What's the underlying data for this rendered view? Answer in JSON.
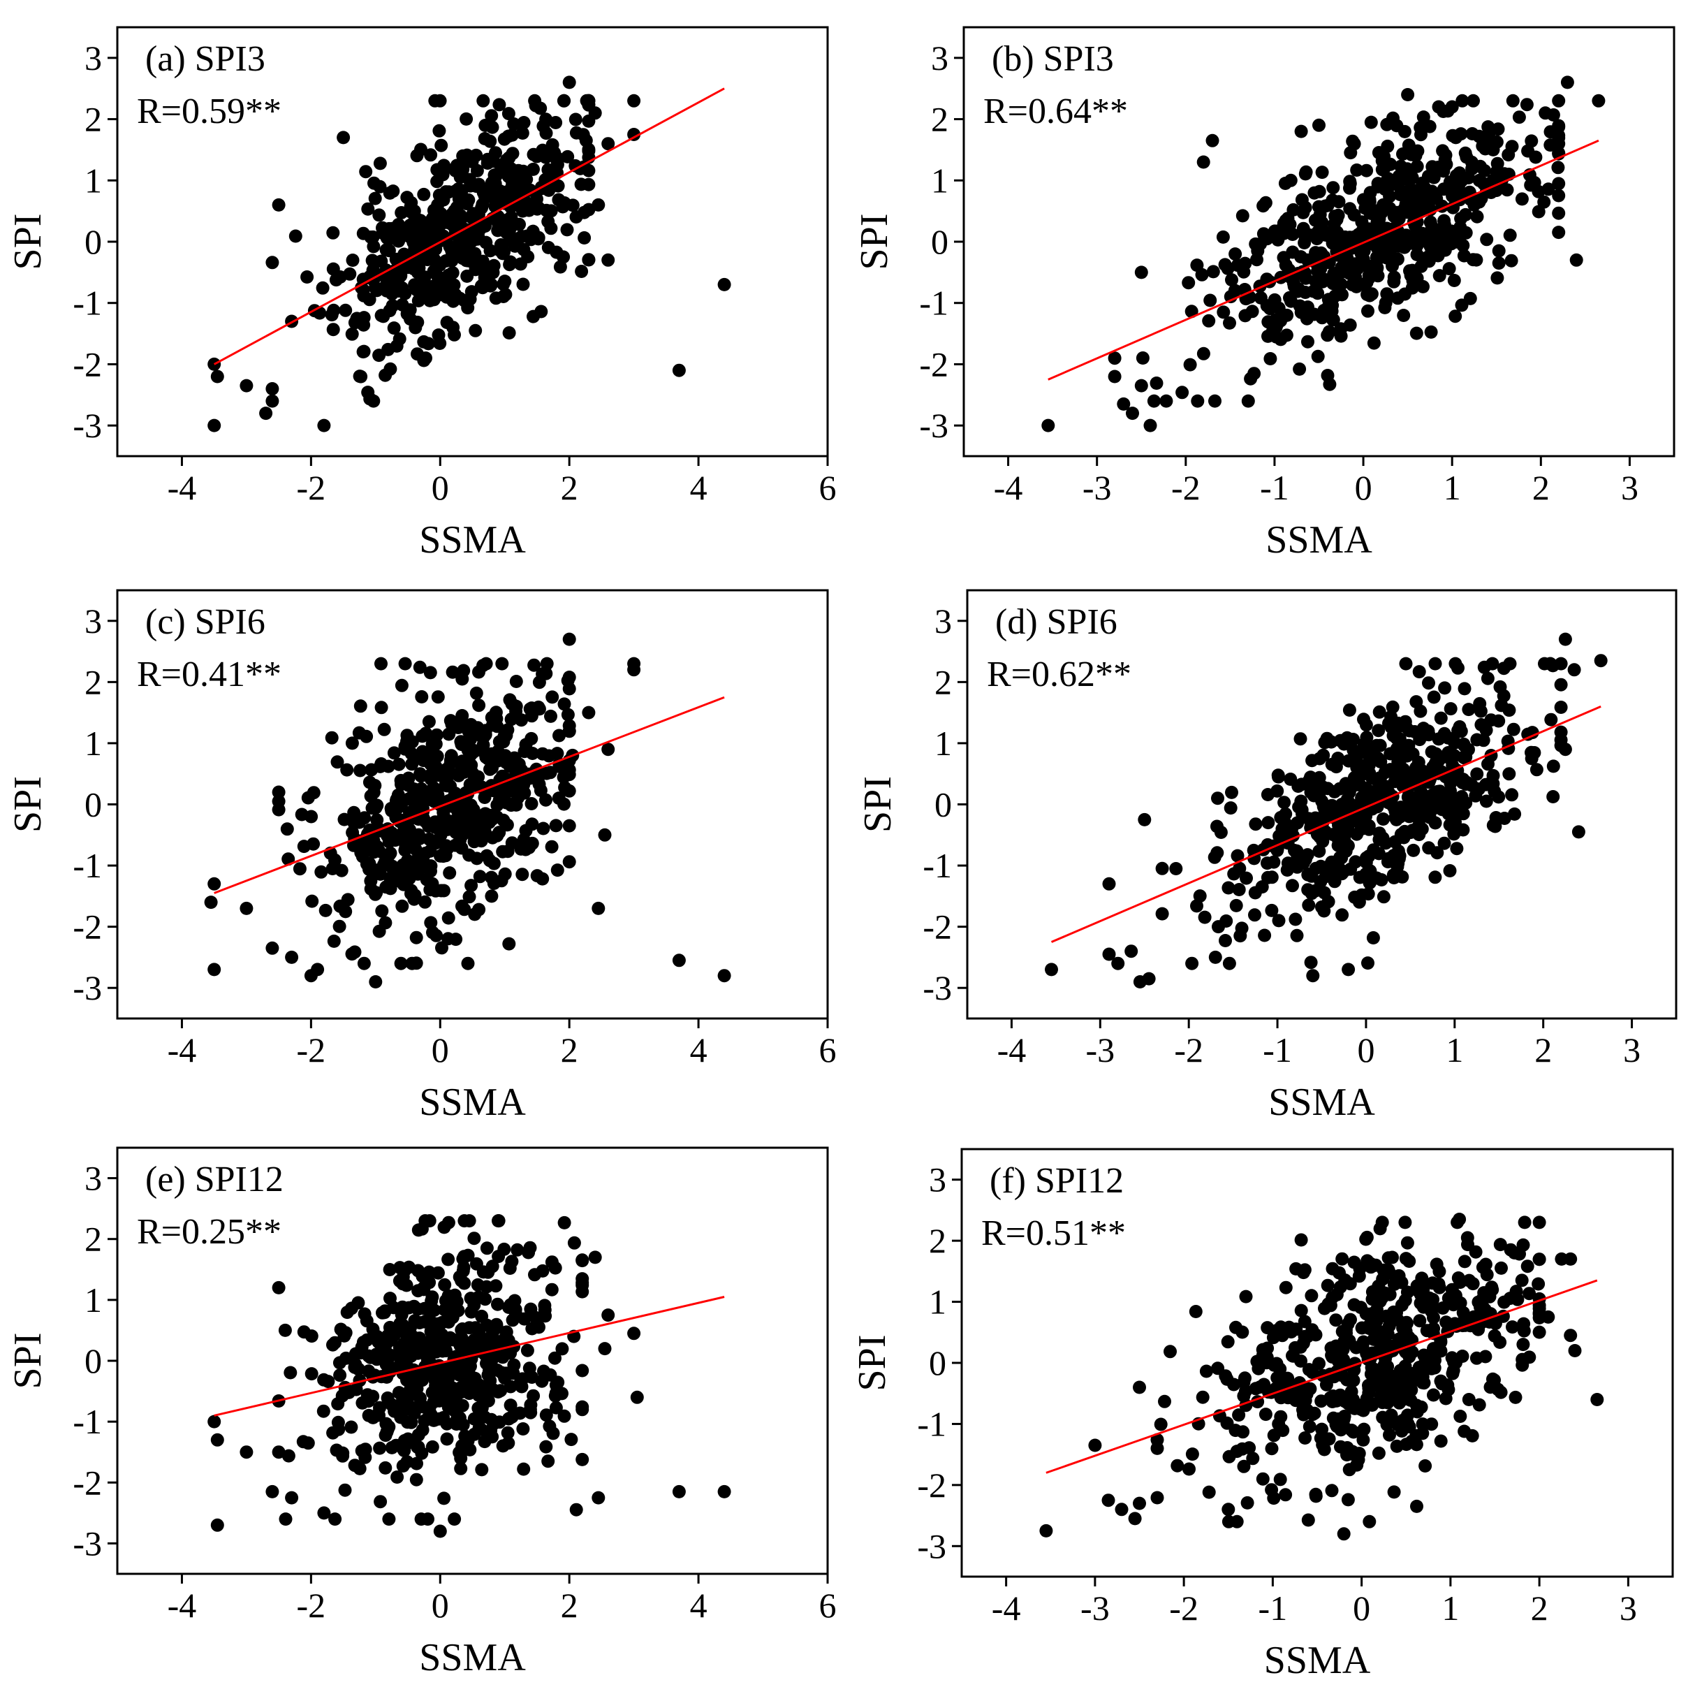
{
  "figure": {
    "note": "Six scatter plots of SPI versus SSMA with fitted regression lines"
  },
  "chart_data": [
    {
      "type": "scatter",
      "id": "a",
      "title": "(a) SPI3",
      "r_label": "R=0.59**",
      "xlabel": "SSMA",
      "ylabel": "SPI",
      "xlim": [
        -5,
        6
      ],
      "ylim": [
        -3.5,
        3.5
      ],
      "xticks": [
        -4,
        -2,
        0,
        2,
        4,
        6
      ],
      "yticks": [
        -3,
        -2,
        -1,
        0,
        1,
        2,
        3
      ],
      "point_color": "#000000",
      "line_color": "#ff0000",
      "fit_line": {
        "x": [
          -3.5,
          4.4
        ],
        "y": [
          -2.0,
          2.5
        ]
      },
      "cloud": {
        "n": 520,
        "x_mean": 0.3,
        "x_sd": 0.95,
        "resid_sd": 0.8,
        "x_range": [
          -2.6,
          2.3
        ],
        "seed": 11
      },
      "outliers": [
        [
          -3.5,
          -3.0
        ],
        [
          -3.5,
          -2.0
        ],
        [
          -3.45,
          -2.2
        ],
        [
          -3.0,
          -2.35
        ],
        [
          -2.7,
          -2.8
        ],
        [
          -2.6,
          -2.4
        ],
        [
          -2.6,
          -2.6
        ],
        [
          -2.5,
          0.6
        ],
        [
          -2.3,
          -1.3
        ],
        [
          -1.8,
          -3.0
        ],
        [
          -1.5,
          1.7
        ],
        [
          2.0,
          2.6
        ],
        [
          2.4,
          2.1
        ],
        [
          2.45,
          0.6
        ],
        [
          2.6,
          -0.3
        ],
        [
          2.6,
          1.6
        ],
        [
          3.0,
          1.75
        ],
        [
          3.0,
          2.3
        ],
        [
          3.7,
          -2.1
        ],
        [
          4.4,
          -0.7
        ]
      ]
    },
    {
      "type": "scatter",
      "id": "b",
      "title": "(b) SPI3",
      "r_label": "R=0.64**",
      "xlabel": "SSMA",
      "ylabel": "SPI",
      "xlim": [
        -4.5,
        3.5
      ],
      "ylim": [
        -3.5,
        3.5
      ],
      "xticks": [
        -4,
        -3,
        -2,
        -1,
        0,
        1,
        2,
        3
      ],
      "yticks": [
        -3,
        -2,
        -1,
        0,
        1,
        2,
        3
      ],
      "point_color": "#000000",
      "line_color": "#ff0000",
      "fit_line": {
        "x": [
          -3.55,
          2.65
        ],
        "y": [
          -2.25,
          1.65
        ]
      },
      "cloud": {
        "n": 540,
        "x_mean": 0.1,
        "x_sd": 0.9,
        "resid_sd": 0.75,
        "x_range": [
          -2.5,
          2.2
        ],
        "seed": 23
      },
      "outliers": [
        [
          -3.55,
          -3.0
        ],
        [
          -2.8,
          -1.9
        ],
        [
          -2.8,
          -2.2
        ],
        [
          -2.7,
          -2.65
        ],
        [
          -2.6,
          -2.8
        ],
        [
          -2.5,
          -2.35
        ],
        [
          -2.5,
          -0.5
        ],
        [
          -2.4,
          -3.0
        ],
        [
          -1.8,
          1.3
        ],
        [
          -1.7,
          1.65
        ],
        [
          -0.7,
          1.8
        ],
        [
          -0.5,
          1.9
        ],
        [
          0.5,
          2.4
        ],
        [
          1.0,
          2.2
        ],
        [
          2.3,
          2.6
        ],
        [
          2.65,
          2.3
        ],
        [
          2.4,
          -0.3
        ],
        [
          2.05,
          2.1
        ],
        [
          2.2,
          1.6
        ]
      ]
    },
    {
      "type": "scatter",
      "id": "c",
      "title": "(c) SPI6",
      "r_label": "R=0.41**",
      "xlabel": "SSMA",
      "ylabel": "SPI",
      "xlim": [
        -5,
        6
      ],
      "ylim": [
        -3.5,
        3.5
      ],
      "xticks": [
        -4,
        -2,
        0,
        2,
        4,
        6
      ],
      "yticks": [
        -3,
        -2,
        -1,
        0,
        1,
        2,
        3
      ],
      "point_color": "#000000",
      "line_color": "#ff0000",
      "fit_line": {
        "x": [
          -3.5,
          4.4
        ],
        "y": [
          -1.45,
          1.75
        ]
      },
      "cloud": {
        "n": 520,
        "x_mean": 0.2,
        "x_sd": 0.95,
        "resid_sd": 0.95,
        "x_range": [
          -2.5,
          2.0
        ],
        "seed": 37
      },
      "outliers": [
        [
          -3.55,
          -1.6
        ],
        [
          -3.5,
          -1.3
        ],
        [
          -3.5,
          -2.7
        ],
        [
          -3.0,
          -1.7
        ],
        [
          -2.6,
          -2.35
        ],
        [
          -2.5,
          0.2
        ],
        [
          -2.5,
          0.05
        ],
        [
          -2.3,
          -2.5
        ],
        [
          -2.0,
          -2.8
        ],
        [
          -1.9,
          -2.7
        ],
        [
          -1.0,
          -2.9
        ],
        [
          2.0,
          2.7
        ],
        [
          2.05,
          0.8
        ],
        [
          2.3,
          1.5
        ],
        [
          2.45,
          -1.7
        ],
        [
          2.55,
          -0.5
        ],
        [
          2.6,
          0.9
        ],
        [
          3.0,
          2.2
        ],
        [
          3.0,
          2.3
        ],
        [
          3.7,
          -2.55
        ],
        [
          4.4,
          -2.8
        ]
      ]
    },
    {
      "type": "scatter",
      "id": "d",
      "title": "(d) SPI6",
      "r_label": "R=0.62**",
      "xlabel": "SSMA",
      "ylabel": "SPI",
      "xlim": [
        -4.5,
        3.5
      ],
      "ylim": [
        -3.5,
        3.5
      ],
      "xticks": [
        -4,
        -3,
        -2,
        -1,
        0,
        1,
        2,
        3
      ],
      "yticks": [
        -3,
        -2,
        -1,
        0,
        1,
        2,
        3
      ],
      "point_color": "#000000",
      "line_color": "#ff0000",
      "fit_line": {
        "x": [
          -3.55,
          2.65
        ],
        "y": [
          -2.25,
          1.6
        ]
      },
      "cloud": {
        "n": 540,
        "x_mean": 0.15,
        "x_sd": 0.85,
        "resid_sd": 0.75,
        "x_range": [
          -2.3,
          2.2
        ],
        "seed": 53
      },
      "outliers": [
        [
          -3.55,
          -2.7
        ],
        [
          -2.9,
          -1.3
        ],
        [
          -2.9,
          -2.45
        ],
        [
          -2.8,
          -2.6
        ],
        [
          -2.65,
          -2.4
        ],
        [
          -2.55,
          -2.9
        ],
        [
          -2.5,
          -0.25
        ],
        [
          -2.45,
          -2.85
        ],
        [
          -1.7,
          -2.5
        ],
        [
          -0.6,
          -2.8
        ],
        [
          -0.2,
          -2.7
        ],
        [
          0.45,
          2.3
        ],
        [
          2.25,
          2.7
        ],
        [
          2.35,
          2.2
        ],
        [
          2.65,
          2.35
        ],
        [
          2.4,
          -0.45
        ],
        [
          2.25,
          0.9
        ]
      ]
    },
    {
      "type": "scatter",
      "id": "e",
      "title": "(e) SPI12",
      "r_label": "R=0.25**",
      "xlabel": "SSMA",
      "ylabel": "SPI",
      "xlim": [
        -5,
        6
      ],
      "ylim": [
        -3.5,
        3.5
      ],
      "xticks": [
        -4,
        -2,
        0,
        2,
        4,
        6
      ],
      "yticks": [
        -3,
        -2,
        -1,
        0,
        1,
        2,
        3
      ],
      "point_color": "#000000",
      "line_color": "#ff0000",
      "fit_line": {
        "x": [
          -3.5,
          4.4
        ],
        "y": [
          -0.9,
          1.05
        ]
      },
      "cloud": {
        "n": 520,
        "x_mean": 0.1,
        "x_sd": 1.0,
        "resid_sd": 1.0,
        "x_range": [
          -2.5,
          2.2
        ],
        "seed": 71
      },
      "outliers": [
        [
          -3.5,
          -1.0
        ],
        [
          -3.45,
          -1.3
        ],
        [
          -3.45,
          -2.7
        ],
        [
          -3.0,
          -1.5
        ],
        [
          -2.6,
          -2.15
        ],
        [
          -2.5,
          -1.5
        ],
        [
          -2.5,
          1.2
        ],
        [
          -2.4,
          0.5
        ],
        [
          -2.3,
          -2.25
        ],
        [
          -1.8,
          -2.5
        ],
        [
          0.0,
          -2.8
        ],
        [
          0.9,
          2.3
        ],
        [
          2.4,
          1.7
        ],
        [
          2.45,
          -2.25
        ],
        [
          2.55,
          0.2
        ],
        [
          2.6,
          0.75
        ],
        [
          3.0,
          0.45
        ],
        [
          3.05,
          -0.6
        ],
        [
          3.7,
          -2.15
        ],
        [
          4.4,
          -2.15
        ]
      ]
    },
    {
      "type": "scatter",
      "id": "f",
      "title": "(f) SPI12",
      "r_label": "R=0.51**",
      "xlabel": "SSMA",
      "ylabel": "SPI",
      "xlim": [
        -4.5,
        3.5
      ],
      "ylim": [
        -3.5,
        3.5
      ],
      "xticks": [
        -4,
        -3,
        -2,
        -1,
        0,
        1,
        2,
        3
      ],
      "yticks": [
        -3,
        -2,
        -1,
        0,
        1,
        2,
        3
      ],
      "point_color": "#000000",
      "line_color": "#ff0000",
      "fit_line": {
        "x": [
          -3.55,
          2.65
        ],
        "y": [
          -1.8,
          1.35
        ]
      },
      "cloud": {
        "n": 540,
        "x_mean": 0.15,
        "x_sd": 0.9,
        "resid_sd": 0.85,
        "x_range": [
          -2.3,
          2.0
        ],
        "seed": 89
      },
      "outliers": [
        [
          -3.55,
          -2.75
        ],
        [
          -3.0,
          -1.35
        ],
        [
          -2.85,
          -2.25
        ],
        [
          -2.7,
          -2.4
        ],
        [
          -2.55,
          -2.55
        ],
        [
          -2.5,
          -2.3
        ],
        [
          -2.5,
          -0.4
        ],
        [
          -1.5,
          -2.4
        ],
        [
          -0.2,
          -2.8
        ],
        [
          1.1,
          2.35
        ],
        [
          2.0,
          0.8
        ],
        [
          2.1,
          0.75
        ],
        [
          2.25,
          1.7
        ],
        [
          2.35,
          1.7
        ],
        [
          2.35,
          0.45
        ],
        [
          2.4,
          0.2
        ],
        [
          2.65,
          -0.6
        ]
      ]
    }
  ]
}
